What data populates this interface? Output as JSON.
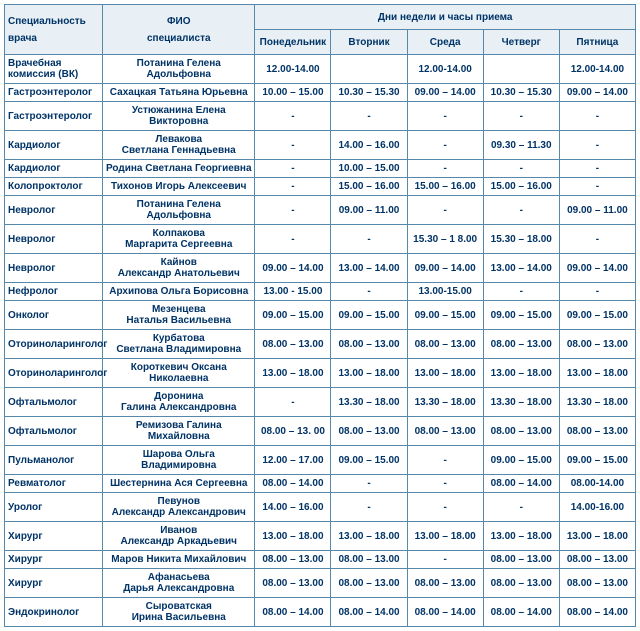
{
  "header": {
    "spec_top": "Специальность",
    "spec_sub": "врача",
    "fio_top": "ФИО",
    "fio_sub": "специалиста",
    "days_group": "Дни недели и часы приема",
    "days": [
      "Понедельник",
      "Вторник",
      "Среда",
      "Четверг",
      "Пятница"
    ]
  },
  "rows": [
    {
      "spec": "Врачебная комиссия (ВК)",
      "fio": "Потанина Гелена Адольфовна",
      "d": [
        "12.00-14.00",
        "",
        "12.00-14.00",
        "",
        "12.00-14.00"
      ]
    },
    {
      "spec": "Гастроэнтеролог",
      "fio": "Сахацкая Татьяна Юрьевна",
      "d": [
        "10.00 – 15.00",
        "10.30 – 15.30",
        "09.00 – 14.00",
        "10.30 – 15.30",
        "09.00 – 14.00"
      ]
    },
    {
      "spec": "Гастроэнтеролог",
      "fio": "Устюжанина Елена Викторовна",
      "d": [
        "-",
        "-",
        "-",
        "-",
        "-"
      ]
    },
    {
      "spec": "Кардиолог",
      "fio": "Левакова\nСветлана Геннадьевна",
      "d": [
        "-",
        "14.00 – 16.00",
        "-",
        "09.30 – 11.30",
        "-"
      ]
    },
    {
      "spec": "Кардиолог",
      "fio": "Родина Светлана Георгиевна",
      "d": [
        "-",
        "10.00 – 15.00",
        "-",
        "-",
        "-"
      ]
    },
    {
      "spec": "Колопроктолог",
      "fio": "Тихонов Игорь Алексеевич",
      "d": [
        "-",
        "15.00 – 16.00",
        "15.00 – 16.00",
        "15.00 – 16.00",
        "-"
      ]
    },
    {
      "spec": "Невролог",
      "fio": "Потанина Гелена Адольфовна",
      "d": [
        "-",
        "09.00 – 11.00",
        "-",
        "-",
        "09.00 – 11.00"
      ]
    },
    {
      "spec": "Невролог",
      "fio": "Колпакова\nМаргарита Сергеевна",
      "d": [
        "-",
        "-",
        "15.30 – 1 8.00",
        "15.30 – 18.00",
        "-"
      ]
    },
    {
      "spec": "Невролог",
      "fio": "Кайнов\nАлександр Анатольевич",
      "d": [
        "09.00 – 14.00",
        "13.00 – 14.00",
        "09.00 – 14.00",
        "13.00 – 14.00",
        "09.00 – 14.00"
      ]
    },
    {
      "spec": "Нефролог",
      "fio": "Архипова Ольга Борисовна",
      "d": [
        "13.00 - 15.00",
        "-",
        "13.00-15.00",
        "-",
        "-"
      ]
    },
    {
      "spec": "Онколог",
      "fio": "Мезенцева\nНаталья Васильевна",
      "d": [
        "09.00 – 15.00",
        "09.00 – 15.00",
        "09.00 – 15.00",
        "09.00 – 15.00",
        "09.00 – 15.00"
      ]
    },
    {
      "spec": "Оториноларинголог",
      "fio": "Курбатова\nСветлана Владимировна",
      "d": [
        "08.00 – 13.00",
        "08.00 – 13.00",
        "08.00 – 13.00",
        "08.00 – 13.00",
        "08.00 – 13.00"
      ]
    },
    {
      "spec": "Оториноларинголог",
      "fio": "Короткевич Оксана Николаевна",
      "d": [
        "13.00 – 18.00",
        "13.00 – 18.00",
        "13.00 – 18.00",
        "13.00 – 18.00",
        "13.00 – 18.00"
      ]
    },
    {
      "spec": "Офтальмолог",
      "fio": "Доронина\nГалина Александровна",
      "d": [
        "-",
        "13.30 – 18.00",
        "13.30 – 18.00",
        "13.30 – 18.00",
        "13.30 – 18.00"
      ]
    },
    {
      "spec": "Офтальмолог",
      "fio": "Ремизова Галина Михайловна",
      "d": [
        "08.00 – 13. 00",
        "08.00 – 13.00",
        "08.00 – 13.00",
        "08.00 – 13.00",
        "08.00 – 13.00"
      ]
    },
    {
      "spec": "Пульманолог",
      "fio": "Шарова Ольга Владимировна",
      "d": [
        "12.00 – 17.00",
        "09.00 – 15.00",
        "-",
        "09.00 – 15.00",
        "09.00 – 15.00"
      ]
    },
    {
      "spec": "Ревматолог",
      "fio": "Шестернина Ася Сергеевна",
      "d": [
        "08.00 – 14.00",
        "-",
        "-",
        "08.00 – 14.00",
        "08.00-14.00"
      ]
    },
    {
      "spec": "Уролог",
      "fio": "Певунов\nАлександр Александрович",
      "d": [
        "14.00 – 16.00",
        "-",
        "-",
        "-",
        "14.00-16.00"
      ]
    },
    {
      "spec": "Хирург",
      "fio": "Иванов\nАлександр Аркадьевич",
      "d": [
        "13.00 – 18.00",
        "13.00 – 18.00",
        "13.00 – 18.00",
        "13.00 – 18.00",
        "13.00 – 18.00"
      ]
    },
    {
      "spec": "Хирург",
      "fio": "Маров Никита Михайлович",
      "d": [
        "08.00 – 13.00",
        "08.00 – 13.00",
        "-",
        "08.00 – 13.00",
        "08.00 – 13.00"
      ]
    },
    {
      "spec": "Хирург",
      "fio": "Афанасьева\nДарья Александровна",
      "d": [
        "08.00 – 13.00",
        "08.00 – 13.00",
        "08.00 – 13.00",
        "08.00 – 13.00",
        "08.00 – 13.00"
      ]
    },
    {
      "spec": "Эндокринолог",
      "fio": "Сыроватская\nИрина Васильевна",
      "d": [
        "08.00 – 14.00",
        "08.00 – 14.00",
        "08.00 – 14.00",
        "08.00 – 14.00",
        "08.00 – 14.00"
      ]
    }
  ]
}
